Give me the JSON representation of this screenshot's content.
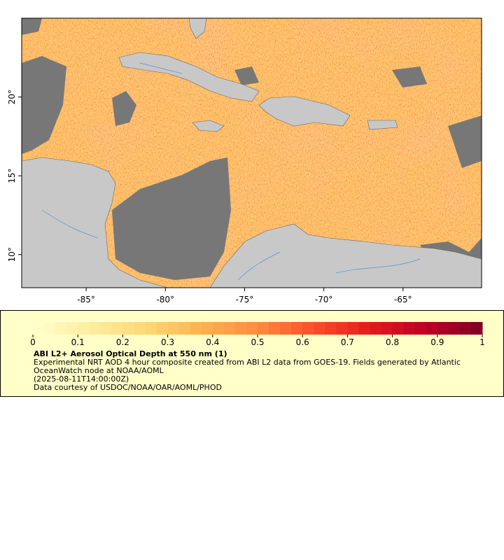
{
  "map": {
    "xlim": [
      -89.07,
      -60.04
    ],
    "ylim": [
      7.9,
      25
    ],
    "xticks": [
      {
        "value": -85,
        "label": "-85°"
      },
      {
        "value": -80,
        "label": "-80°"
      },
      {
        "value": -75,
        "label": "-75°"
      },
      {
        "value": -70,
        "label": "-70°"
      },
      {
        "value": -65,
        "label": "-65°"
      }
    ],
    "yticks": [
      {
        "value": 10,
        "label": "10°"
      },
      {
        "value": 15,
        "label": "15°"
      },
      {
        "value": 20,
        "label": "20°"
      }
    ]
  },
  "colorbar": {
    "range": [
      0,
      1
    ],
    "ticks": [
      0,
      0.1,
      0.2,
      0.3,
      0.4,
      0.5,
      0.6,
      0.7,
      0.8,
      0.9,
      1
    ],
    "colors": [
      "#ffffcc",
      "#ffeda0",
      "#fed976",
      "#feb24c",
      "#fd8d3c",
      "#fc4e2a",
      "#e31a1c",
      "#bd0026",
      "#800026"
    ]
  },
  "legend": {
    "title": "ABI L2+ Aerosol Optical Depth at 550 nm (1)",
    "description": "Experimental NRT AOD 4 hour composite created from ABI L2 data from GOES-19. Fields generated by Atlantic OceanWatch node at NOAA/AOML",
    "time": "(2025-08-11T14:00:00Z)",
    "credit": "Data courtesy of USDOC/NOAA/OAR/AOML/PHOD"
  }
}
